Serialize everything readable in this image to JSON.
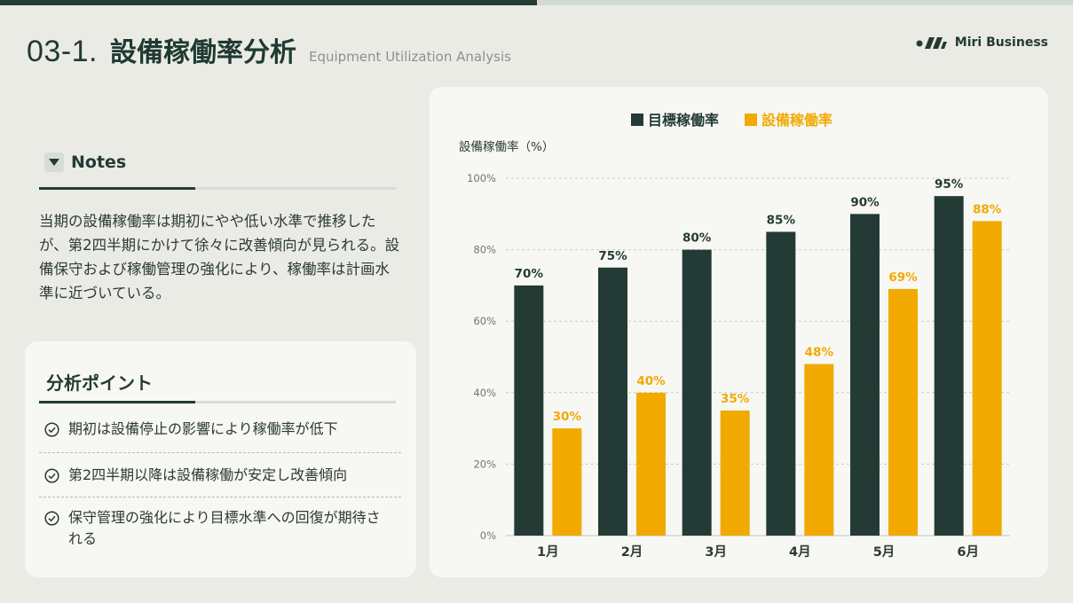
{
  "header": {
    "section_number": "03-1.",
    "title": "設備稼働率分析",
    "subtitle": "Equipment Utilization Analysis",
    "brand_name": "Miri Business"
  },
  "notes": {
    "heading": "Notes",
    "body": "当期の設備稼働率は期初にやや低い水準で推移したが、第2四半期にかけて徐々に改善傾向が見られる。設備保守および稼働管理の強化により、稼働率は計画水準に近づいている。"
  },
  "analysis": {
    "heading": "分析ポイント",
    "points": [
      "期初は設備停止の影響により稼働率が低下",
      "第2四半期以降は設備稼働が安定し改善傾向",
      "保守管理の強化により目標水準への回復が期待される"
    ]
  },
  "colors": {
    "target": "#233b34",
    "actual": "#f2a900",
    "grid": "#c9ccc7",
    "axis_text": "#6f7570"
  },
  "chart_data": {
    "type": "bar",
    "ylabel": "設備稼働率（%）",
    "legend_position": "top-center",
    "grid": true,
    "ylim": [
      0,
      100
    ],
    "yticks": [
      "0%",
      "20%",
      "40%",
      "60%",
      "80%",
      "100%"
    ],
    "categories": [
      "1月",
      "2月",
      "3月",
      "4月",
      "5月",
      "6月"
    ],
    "series": [
      {
        "name": "目標稼働率",
        "values": [
          70,
          75,
          80,
          85,
          90,
          95
        ],
        "labels": [
          "70%",
          "75%",
          "80%",
          "85%",
          "90%",
          "95%"
        ]
      },
      {
        "name": "設備稼働率",
        "values": [
          30,
          40,
          35,
          48,
          69,
          88
        ],
        "labels": [
          "30%",
          "40%",
          "35%",
          "48%",
          "69%",
          "88%"
        ]
      }
    ]
  }
}
